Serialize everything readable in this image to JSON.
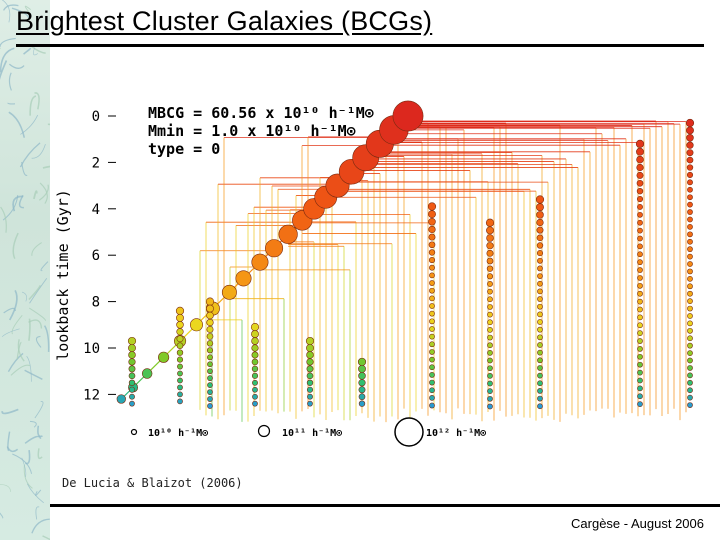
{
  "slide": {
    "title": "Brightest Cluster Galaxies (BCGs)",
    "citation": "De Lucia & Blaizot (2006)",
    "footer": "Cargèse - August 2006"
  },
  "chart_data": {
    "type": "merger-tree",
    "title": "",
    "ylabel": "lookback time (Gyr)",
    "y_ticks": [
      0,
      2,
      4,
      6,
      8,
      10,
      12
    ],
    "ylim": [
      0,
      13.5
    ],
    "annotations": [
      {
        "text": "M_BCG = 60.56 x 10^10 h^-1 M_⊙"
      },
      {
        "text": "M_min = 1.0 x 10^10 h^-1 M_⊙"
      },
      {
        "text": "type = 0"
      }
    ],
    "annotation_lines": [
      "MBCG = 60.56 x 10¹⁰ h⁻¹M⊙",
      "Mmin = 1.0 x 10¹⁰ h⁻¹M⊙",
      "type = 0"
    ],
    "size_legend": [
      {
        "label": "10¹⁰ h⁻¹M⊙",
        "mass": 10000000000.0
      },
      {
        "label": "10¹¹ h⁻¹M⊙",
        "mass": 100000000000.0
      },
      {
        "label": "10¹² h⁻¹M⊙",
        "mass": 1000000000000.0
      }
    ],
    "main_branch": [
      {
        "t": 0.0,
        "mass": 600000000000.0
      },
      {
        "t": 0.6,
        "mass": 500000000000.0
      },
      {
        "t": 1.2,
        "mass": 420000000000.0
      },
      {
        "t": 1.8,
        "mass": 360000000000.0
      },
      {
        "t": 2.4,
        "mass": 300000000000.0
      },
      {
        "t": 3.0,
        "mass": 240000000000.0
      },
      {
        "t": 3.5,
        "mass": 200000000000.0
      },
      {
        "t": 4.0,
        "mass": 160000000000.0
      },
      {
        "t": 4.5,
        "mass": 130000000000.0
      },
      {
        "t": 5.1,
        "mass": 105000000000.0
      },
      {
        "t": 5.7,
        "mass": 85000000000.0
      },
      {
        "t": 6.3,
        "mass": 68000000000.0
      },
      {
        "t": 7.0,
        "mass": 54000000000.0
      },
      {
        "t": 7.6,
        "mass": 42000000000.0
      },
      {
        "t": 8.3,
        "mass": 32000000000.0
      },
      {
        "t": 9.0,
        "mass": 25000000000.0
      },
      {
        "t": 9.7,
        "mass": 19000000000.0
      },
      {
        "t": 10.4,
        "mass": 14000000000.0
      },
      {
        "t": 11.1,
        "mass": 11000000000.0
      },
      {
        "t": 11.7,
        "mass": 9000000000.0
      },
      {
        "t": 12.2,
        "mass": 7000000000.0
      }
    ]
  }
}
